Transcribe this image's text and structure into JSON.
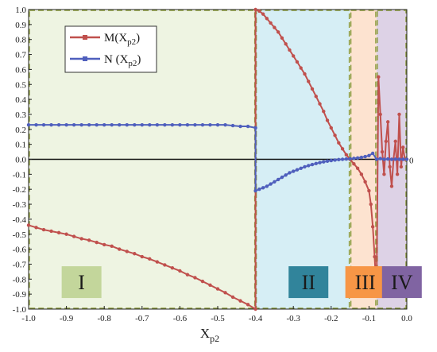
{
  "chart_data": {
    "type": "line",
    "xlabel": "X",
    "xlabel_sub": "p2",
    "ylabel": "",
    "xlim": [
      -1.0,
      0.0
    ],
    "ylim": [
      -1.0,
      1.0
    ],
    "x_ticks": [
      -1.0,
      -0.9,
      -0.8,
      -0.7,
      -0.6,
      -0.5,
      -0.4,
      -0.3,
      -0.2,
      -0.1,
      0.0
    ],
    "x_tick_labels": [
      "-1.0",
      "-0.9",
      "-0.8",
      "-0.7",
      "-0.6",
      "-0.5",
      "-0.4",
      "-0.3",
      "-0.2",
      "-0.1",
      "0.0"
    ],
    "y_ticks": [
      -1.0,
      -0.9,
      -0.8,
      -0.7,
      -0.6,
      -0.5,
      -0.4,
      -0.3,
      -0.2,
      -0.1,
      0.0,
      0.1,
      0.2,
      0.3,
      0.4,
      0.5,
      0.6,
      0.7,
      0.8,
      0.9,
      1.0
    ],
    "y_tick_labels": [
      "-1.0",
      "-0.9",
      "-0.8",
      "-0.7",
      "-0.6",
      "-0.5",
      "-0.4",
      "-0.3",
      "-0.2",
      "-0.1",
      "0.0",
      "0.1",
      "0.2",
      "0.3",
      "0.4",
      "0.5",
      "0.6",
      "0.7",
      "0.8",
      "0.9",
      "1.0"
    ],
    "grid": false,
    "legend_position": "top-left",
    "zero_line_label": "0",
    "regions": [
      {
        "label": "I",
        "x_range": [
          -1.0,
          -0.4
        ],
        "color": "#eef4e2",
        "label_color": "#c3d69b",
        "label_x": -0.86
      },
      {
        "label": "II",
        "x_range": [
          -0.4,
          -0.15
        ],
        "color": "#d6eef5",
        "label_color": "#31849b",
        "label_x": -0.26
      },
      {
        "label": "III",
        "x_range": [
          -0.15,
          -0.08
        ],
        "color": "#fde3d0",
        "label_color": "#f79646",
        "label_x": -0.11
      },
      {
        "label": "IV",
        "x_range": [
          -0.08,
          0.0
        ],
        "color": "#ddd2e6",
        "label_color": "#8064a2",
        "label_x": -0.013
      }
    ],
    "series": [
      {
        "name": "M(X",
        "name_sub": "p2",
        "name_suffix": ")",
        "color": "#c0504d",
        "x": [
          -1.0,
          -0.98,
          -0.96,
          -0.94,
          -0.92,
          -0.9,
          -0.88,
          -0.86,
          -0.84,
          -0.82,
          -0.8,
          -0.78,
          -0.76,
          -0.74,
          -0.72,
          -0.7,
          -0.68,
          -0.66,
          -0.64,
          -0.62,
          -0.6,
          -0.58,
          -0.56,
          -0.54,
          -0.52,
          -0.5,
          -0.48,
          -0.46,
          -0.44,
          -0.42,
          -0.4,
          -0.4,
          -0.39,
          -0.38,
          -0.37,
          -0.36,
          -0.35,
          -0.34,
          -0.33,
          -0.32,
          -0.31,
          -0.3,
          -0.29,
          -0.28,
          -0.27,
          -0.26,
          -0.25,
          -0.24,
          -0.23,
          -0.22,
          -0.21,
          -0.2,
          -0.19,
          -0.18,
          -0.17,
          -0.16,
          -0.15,
          -0.14,
          -0.13,
          -0.12,
          -0.11,
          -0.1,
          -0.095,
          -0.09,
          -0.085,
          -0.08,
          -0.075,
          -0.07,
          -0.065,
          -0.06,
          -0.055,
          -0.05,
          -0.045,
          -0.04,
          -0.035,
          -0.03,
          -0.025,
          -0.02,
          -0.015,
          -0.01,
          -0.005,
          0.0
        ],
        "values": [
          -0.44,
          -0.455,
          -0.47,
          -0.48,
          -0.49,
          -0.5,
          -0.515,
          -0.53,
          -0.54,
          -0.555,
          -0.57,
          -0.58,
          -0.6,
          -0.615,
          -0.63,
          -0.65,
          -0.665,
          -0.685,
          -0.705,
          -0.725,
          -0.745,
          -0.77,
          -0.79,
          -0.815,
          -0.84,
          -0.865,
          -0.89,
          -0.92,
          -0.945,
          -0.97,
          -1.0,
          1.0,
          0.99,
          0.97,
          0.94,
          0.91,
          0.88,
          0.85,
          0.81,
          0.77,
          0.73,
          0.69,
          0.65,
          0.61,
          0.57,
          0.52,
          0.47,
          0.42,
          0.37,
          0.32,
          0.26,
          0.21,
          0.16,
          0.11,
          0.07,
          0.03,
          0.0,
          -0.03,
          -0.06,
          -0.1,
          -0.15,
          -0.21,
          -0.3,
          -0.45,
          -0.65,
          -0.9,
          0.55,
          0.3,
          0.05,
          -0.1,
          0.12,
          0.25,
          -0.05,
          -0.18,
          0.0,
          0.12,
          -0.1,
          0.3,
          -0.05,
          0.08,
          0.0,
          0.0
        ]
      },
      {
        "name": "N (X",
        "name_sub": "p2",
        "name_suffix": ")",
        "color": "#4f5fbd",
        "x": [
          -1.0,
          -0.98,
          -0.96,
          -0.94,
          -0.92,
          -0.9,
          -0.88,
          -0.86,
          -0.84,
          -0.82,
          -0.8,
          -0.78,
          -0.76,
          -0.74,
          -0.72,
          -0.7,
          -0.68,
          -0.66,
          -0.64,
          -0.62,
          -0.6,
          -0.58,
          -0.56,
          -0.54,
          -0.52,
          -0.5,
          -0.48,
          -0.46,
          -0.44,
          -0.42,
          -0.4,
          -0.4,
          -0.39,
          -0.38,
          -0.37,
          -0.36,
          -0.35,
          -0.34,
          -0.33,
          -0.32,
          -0.31,
          -0.3,
          -0.29,
          -0.28,
          -0.27,
          -0.26,
          -0.25,
          -0.24,
          -0.23,
          -0.22,
          -0.21,
          -0.2,
          -0.19,
          -0.18,
          -0.17,
          -0.16,
          -0.15,
          -0.14,
          -0.13,
          -0.12,
          -0.11,
          -0.1,
          -0.09,
          -0.08,
          -0.07,
          -0.06,
          -0.05,
          -0.04,
          -0.03,
          -0.02,
          -0.01,
          0.0
        ],
        "values": [
          0.23,
          0.23,
          0.23,
          0.23,
          0.23,
          0.23,
          0.23,
          0.23,
          0.23,
          0.23,
          0.23,
          0.23,
          0.23,
          0.23,
          0.23,
          0.23,
          0.23,
          0.23,
          0.23,
          0.23,
          0.23,
          0.23,
          0.23,
          0.23,
          0.23,
          0.23,
          0.23,
          0.225,
          0.22,
          0.22,
          0.21,
          -0.21,
          -0.2,
          -0.19,
          -0.18,
          -0.165,
          -0.15,
          -0.135,
          -0.12,
          -0.105,
          -0.09,
          -0.08,
          -0.07,
          -0.06,
          -0.05,
          -0.042,
          -0.035,
          -0.028,
          -0.022,
          -0.017,
          -0.012,
          -0.008,
          -0.005,
          -0.002,
          0.0,
          0.002,
          0.004,
          0.006,
          0.009,
          0.013,
          0.018,
          0.025,
          0.04,
          0.0,
          0.005,
          0.0,
          0.002,
          0.0,
          0.001,
          0.0,
          0.0,
          0.0
        ]
      }
    ]
  }
}
